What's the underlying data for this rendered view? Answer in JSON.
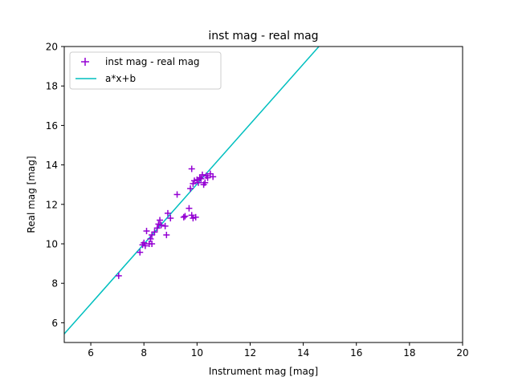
{
  "chart_data": {
    "type": "scatter",
    "title": "inst mag - real mag",
    "xlabel": "Instrument mag [mag]",
    "ylabel": "Real mag [mag]",
    "xlim": [
      5,
      20
    ],
    "ylim": [
      5,
      20
    ],
    "xticks": [
      6,
      8,
      10,
      12,
      14,
      16,
      18,
      20
    ],
    "yticks": [
      6,
      8,
      10,
      12,
      14,
      16,
      18,
      20
    ],
    "grid": false,
    "legend_position": "top-left",
    "series": [
      {
        "name": "inst mag - real mag",
        "kind": "scatter",
        "marker": "plus",
        "color": "#9400d3",
        "points": [
          [
            7.05,
            8.38
          ],
          [
            7.85,
            9.57
          ],
          [
            7.95,
            9.95
          ],
          [
            8.0,
            10.05
          ],
          [
            8.05,
            9.9
          ],
          [
            8.1,
            10.65
          ],
          [
            8.2,
            10.0
          ],
          [
            8.25,
            10.25
          ],
          [
            8.3,
            10.45
          ],
          [
            8.3,
            10.0
          ],
          [
            8.4,
            10.6
          ],
          [
            8.5,
            10.8
          ],
          [
            8.55,
            11.0
          ],
          [
            8.6,
            11.2
          ],
          [
            8.65,
            10.95
          ],
          [
            8.8,
            10.9
          ],
          [
            8.85,
            10.45
          ],
          [
            8.9,
            11.55
          ],
          [
            9.0,
            11.3
          ],
          [
            9.25,
            12.5
          ],
          [
            9.5,
            11.35
          ],
          [
            9.55,
            11.4
          ],
          [
            9.7,
            11.8
          ],
          [
            9.75,
            12.8
          ],
          [
            9.8,
            13.8
          ],
          [
            9.8,
            11.45
          ],
          [
            9.85,
            13.05
          ],
          [
            9.85,
            11.3
          ],
          [
            9.9,
            13.2
          ],
          [
            9.95,
            11.35
          ],
          [
            10.0,
            13.25
          ],
          [
            10.05,
            13.1
          ],
          [
            10.1,
            13.35
          ],
          [
            10.15,
            13.3
          ],
          [
            10.2,
            13.5
          ],
          [
            10.25,
            13.0
          ],
          [
            10.3,
            13.1
          ],
          [
            10.35,
            13.45
          ],
          [
            10.4,
            13.35
          ],
          [
            10.5,
            13.55
          ],
          [
            10.6,
            13.4
          ]
        ]
      },
      {
        "name": "a*x+b",
        "kind": "line",
        "color": "#00bfbf",
        "a": 1.519,
        "b": -2.16
      }
    ]
  }
}
